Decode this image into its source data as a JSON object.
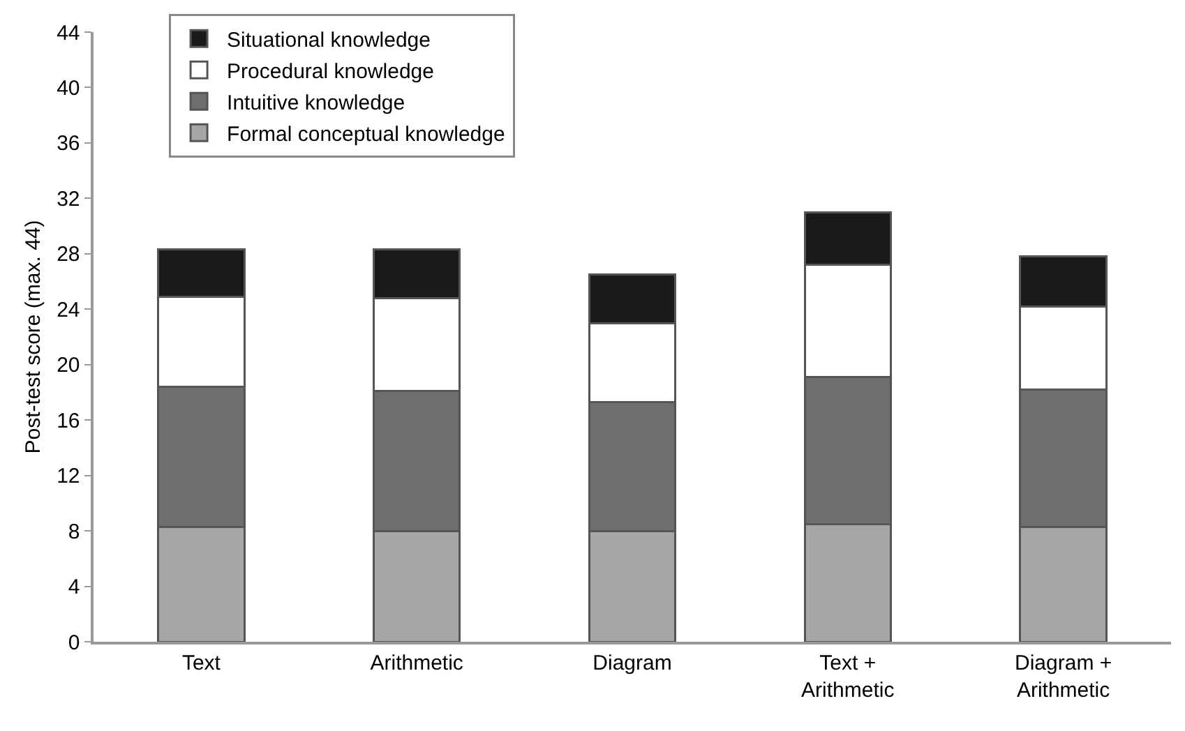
{
  "chart_data": {
    "type": "bar",
    "stacked": true,
    "ylabel": "Post-test score (max. 44)",
    "categories": [
      "Text",
      "Arithmetic",
      "Diagram",
      "Text +\nArithmetic",
      "Diagram +\nArithmetic"
    ],
    "series": [
      {
        "name": "Formal conceptual knowledge",
        "color": "#a6a6a6",
        "values": [
          8.3,
          8.0,
          8.0,
          8.5,
          8.3
        ]
      },
      {
        "name": "Intuitive knowledge",
        "color": "#6e6e6e",
        "values": [
          10.1,
          10.1,
          9.3,
          10.6,
          9.9
        ]
      },
      {
        "name": "Procedural knowledge",
        "color": "#ffffff",
        "values": [
          6.5,
          6.7,
          5.7,
          8.1,
          6.0
        ]
      },
      {
        "name": "Situational knowledge",
        "color": "#1a1a1a",
        "values": [
          3.4,
          3.5,
          3.5,
          3.8,
          3.6
        ]
      }
    ],
    "ylim": [
      0,
      44
    ],
    "yticks": [
      0,
      4,
      8,
      12,
      16,
      20,
      24,
      28,
      32,
      36,
      40,
      44
    ],
    "grid": false,
    "legend": "top left"
  }
}
